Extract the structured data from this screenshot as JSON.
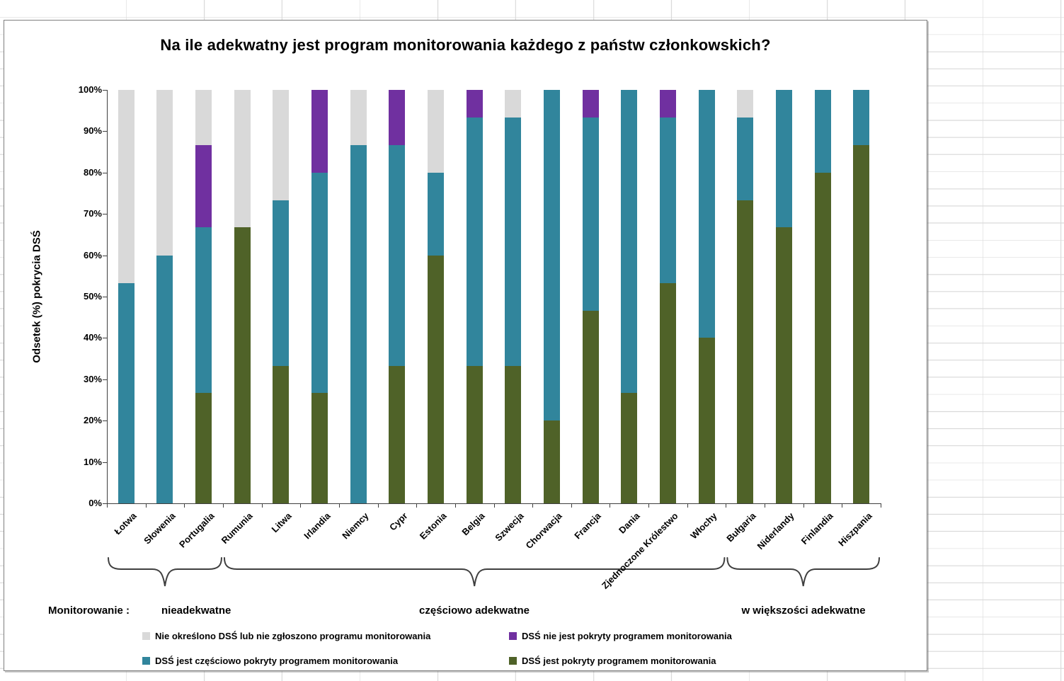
{
  "title": "Na ile adekwatny jest program monitorowania każdego z państw członkowskich?",
  "y_axis": {
    "title": "Odsetek (%) pokrycia DSŚ",
    "ticks": [
      "100%",
      "90%",
      "80%",
      "70%",
      "60%",
      "50%",
      "40%",
      "30%",
      "20%",
      "10%",
      "0%"
    ]
  },
  "groups": {
    "prefix": "Monitorowanie :",
    "items": [
      {
        "label": "nieadekwatne",
        "from": 0,
        "to": 2
      },
      {
        "label": "częściowo adekwatne",
        "from": 3,
        "to": 15
      },
      {
        "label": "w większości adekwatne",
        "from": 16,
        "to": 19
      }
    ]
  },
  "colors": {
    "not_defined": "#D9D9D9",
    "not_covered": "#7030A0",
    "partially_covered": "#31859C",
    "covered": "#4F6228"
  },
  "legend": [
    {
      "key": "not_defined",
      "label": "Nie określono DSŚ lub nie zgłoszono programu monitorowania"
    },
    {
      "key": "not_covered",
      "label": "DSŚ nie jest pokryty programem monitorowania"
    },
    {
      "key": "partially_covered",
      "label": "DSŚ jest częściowo pokryty programem monitorowania"
    },
    {
      "key": "covered",
      "label": "DSŚ jest pokryty programem monitorowania"
    }
  ],
  "chart_data": {
    "type": "bar",
    "stacked": true,
    "unit": "percent",
    "ylim": [
      0,
      100
    ],
    "ylabel": "Odsetek (%) pokrycia DSŚ",
    "grid": false,
    "legend_position": "bottom",
    "categories": [
      "Łotwa",
      "Słowenia",
      "Portugalia",
      "Rumunia",
      "Litwa",
      "Irlandia",
      "Niemcy",
      "Cypr",
      "Estonia",
      "Belgia",
      "Szwecja",
      "Chorwacja",
      "Francja",
      "Dania",
      "Zjednoczone Królestwo",
      "Włochy",
      "Bułgaria",
      "Niderlandy",
      "Finlandia",
      "Hiszpania"
    ],
    "series": [
      {
        "key": "covered",
        "name": "DSŚ jest pokryty programem monitorowania",
        "color": "#4F6228",
        "values": [
          0,
          0,
          26.7,
          66.7,
          33.3,
          26.7,
          0,
          33.3,
          60,
          33.3,
          33.3,
          20,
          46.7,
          26.7,
          53.3,
          40,
          73.3,
          66.7,
          80,
          86.7
        ]
      },
      {
        "key": "partially_covered",
        "name": "DSŚ jest częściowo pokryty programem monitorowania",
        "color": "#31859C",
        "values": [
          53.3,
          60,
          40,
          0,
          40,
          53.3,
          86.7,
          53.3,
          20,
          60,
          60,
          80,
          46.7,
          73.3,
          40,
          60,
          20,
          33.3,
          20,
          13.3
        ]
      },
      {
        "key": "not_covered",
        "name": "DSŚ nie jest pokryty programem monitorowania",
        "color": "#7030A0",
        "values": [
          0,
          0,
          20,
          0,
          0,
          20,
          0,
          13.3,
          0,
          6.7,
          0,
          0,
          6.7,
          0,
          6.7,
          0,
          0,
          0,
          0,
          0
        ]
      },
      {
        "key": "not_defined",
        "name": "Nie określono DSŚ lub nie zgłoszono programu monitorowania",
        "color": "#D9D9D9",
        "values": [
          46.7,
          40,
          13.3,
          33.3,
          26.7,
          0,
          13.3,
          0,
          20,
          0,
          6.7,
          0,
          0,
          0,
          0,
          0,
          6.7,
          0,
          0,
          0
        ]
      }
    ]
  }
}
